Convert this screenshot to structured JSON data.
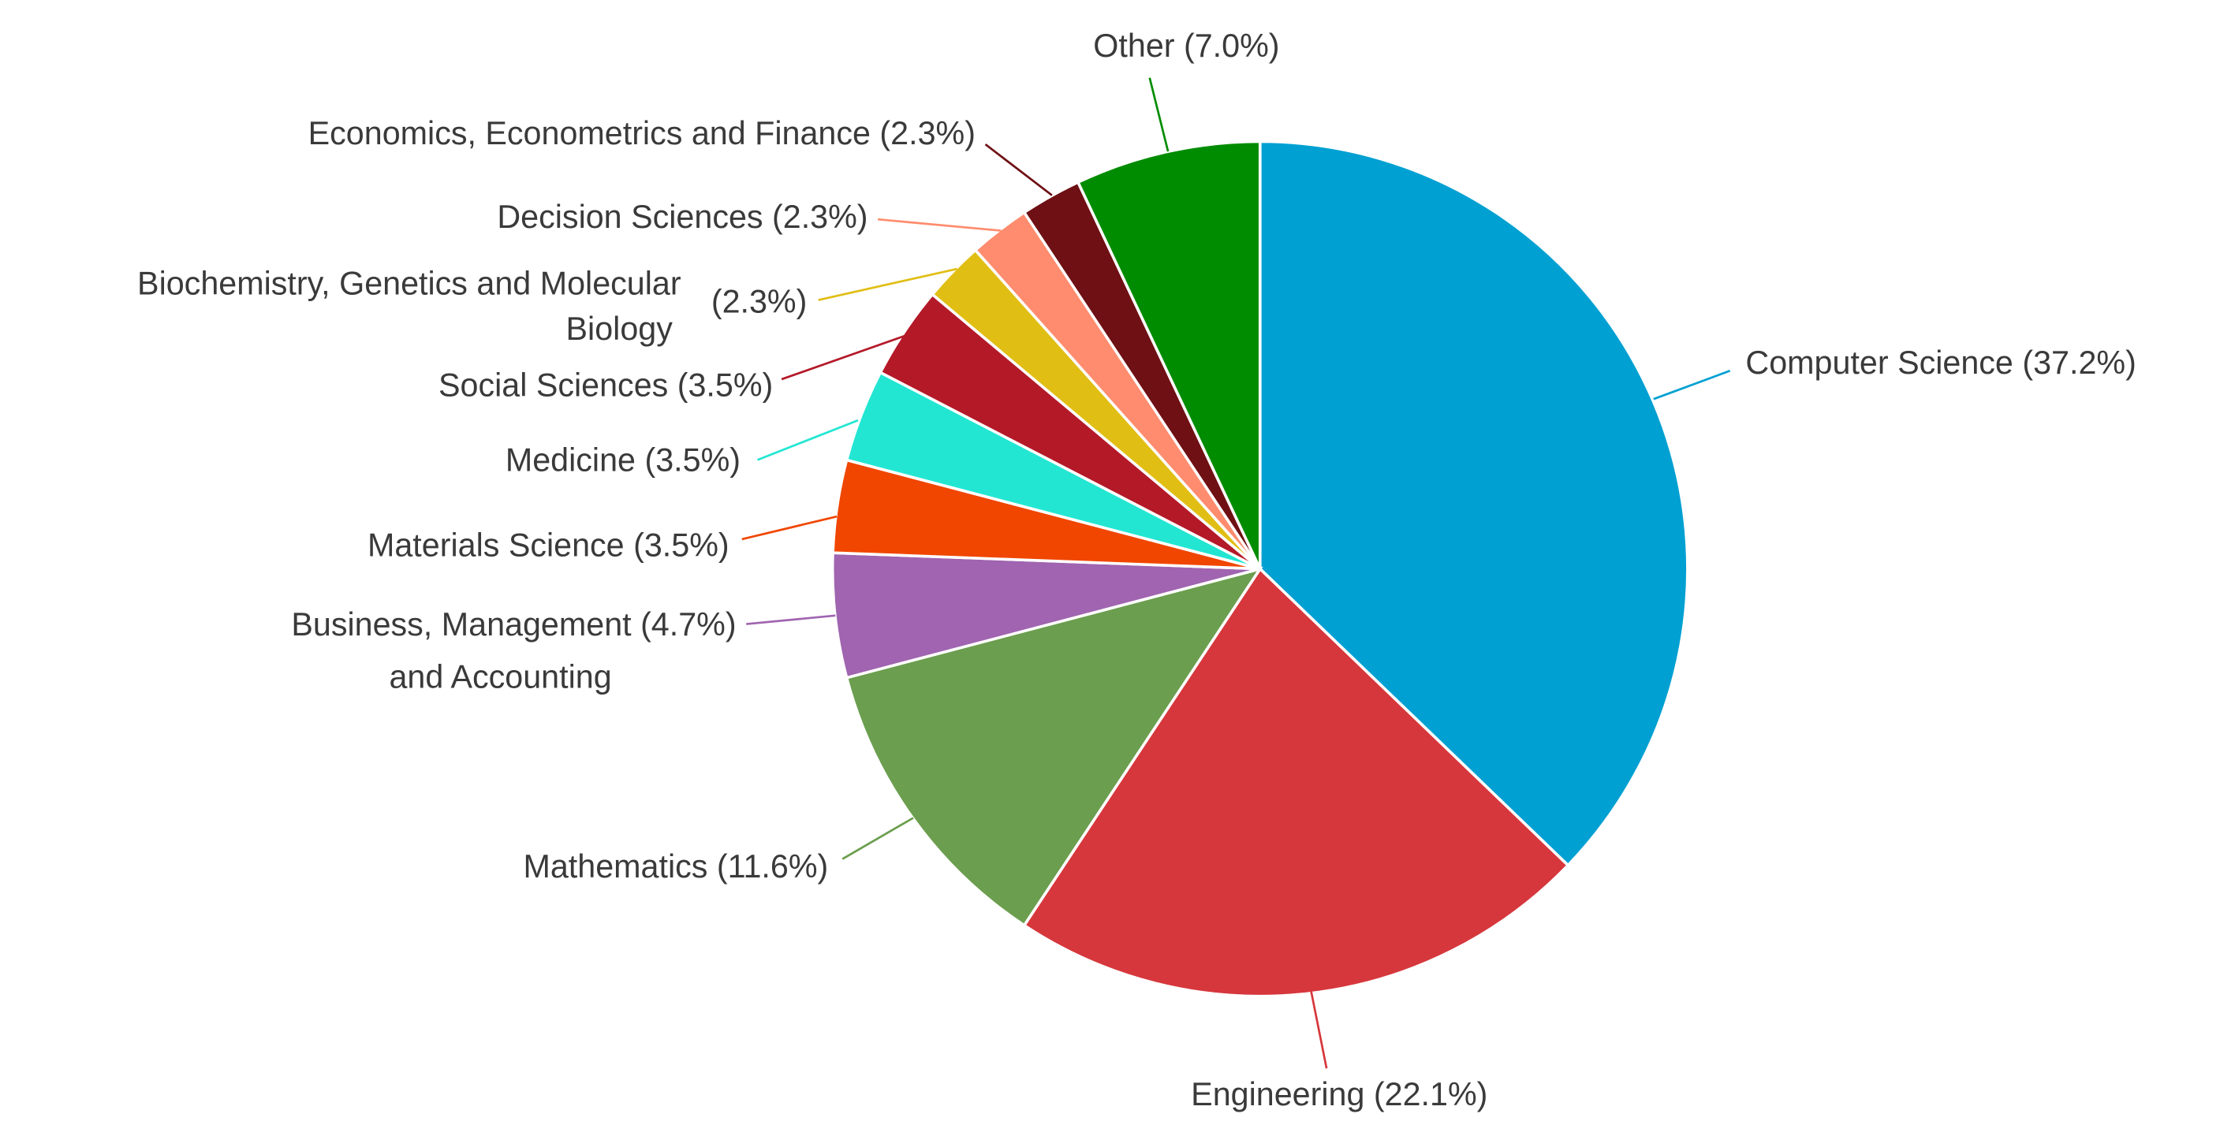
{
  "chart_data": {
    "type": "pie",
    "title": "",
    "start_angle": "top",
    "direction": "clockwise",
    "slices": [
      {
        "label": "Computer Science",
        "pct_label": "(37.2%)",
        "value": 37.2,
        "color": "#00a0d2"
      },
      {
        "label": "Engineering",
        "pct_label": "(22.1%)",
        "value": 22.1,
        "color": "#d6373c"
      },
      {
        "label": "Mathematics",
        "pct_label": "(11.6%)",
        "value": 11.6,
        "color": "#6b9e4e"
      },
      {
        "label": "Business, Management",
        "label2": "and Accounting",
        "pct_label": "(4.7%)",
        "value": 4.7,
        "color": "#a064b0"
      },
      {
        "label": "Materials Science",
        "pct_label": "(3.5%)",
        "value": 3.5,
        "color": "#f04600"
      },
      {
        "label": "Medicine",
        "pct_label": "(3.5%)",
        "value": 3.5,
        "color": "#23e6d2"
      },
      {
        "label": "Social Sciences",
        "pct_label": "(3.5%)",
        "value": 3.5,
        "color": "#b41928"
      },
      {
        "label": "Biochemistry, Genetics and Molecular",
        "label2": "Biology",
        "pct_label": "(2.3%)",
        "value": 2.3,
        "color": "#e1be14"
      },
      {
        "label": "Decision Sciences",
        "pct_label": "(2.3%)",
        "value": 2.3,
        "color": "#ff8c6e"
      },
      {
        "label": "Economics, Econometrics and Finance",
        "pct_label": "(2.3%)",
        "value": 2.3,
        "color": "#6e1014"
      },
      {
        "label": "Other",
        "pct_label": "(7.0%)",
        "value": 7.0,
        "color": "#008c00"
      }
    ]
  }
}
